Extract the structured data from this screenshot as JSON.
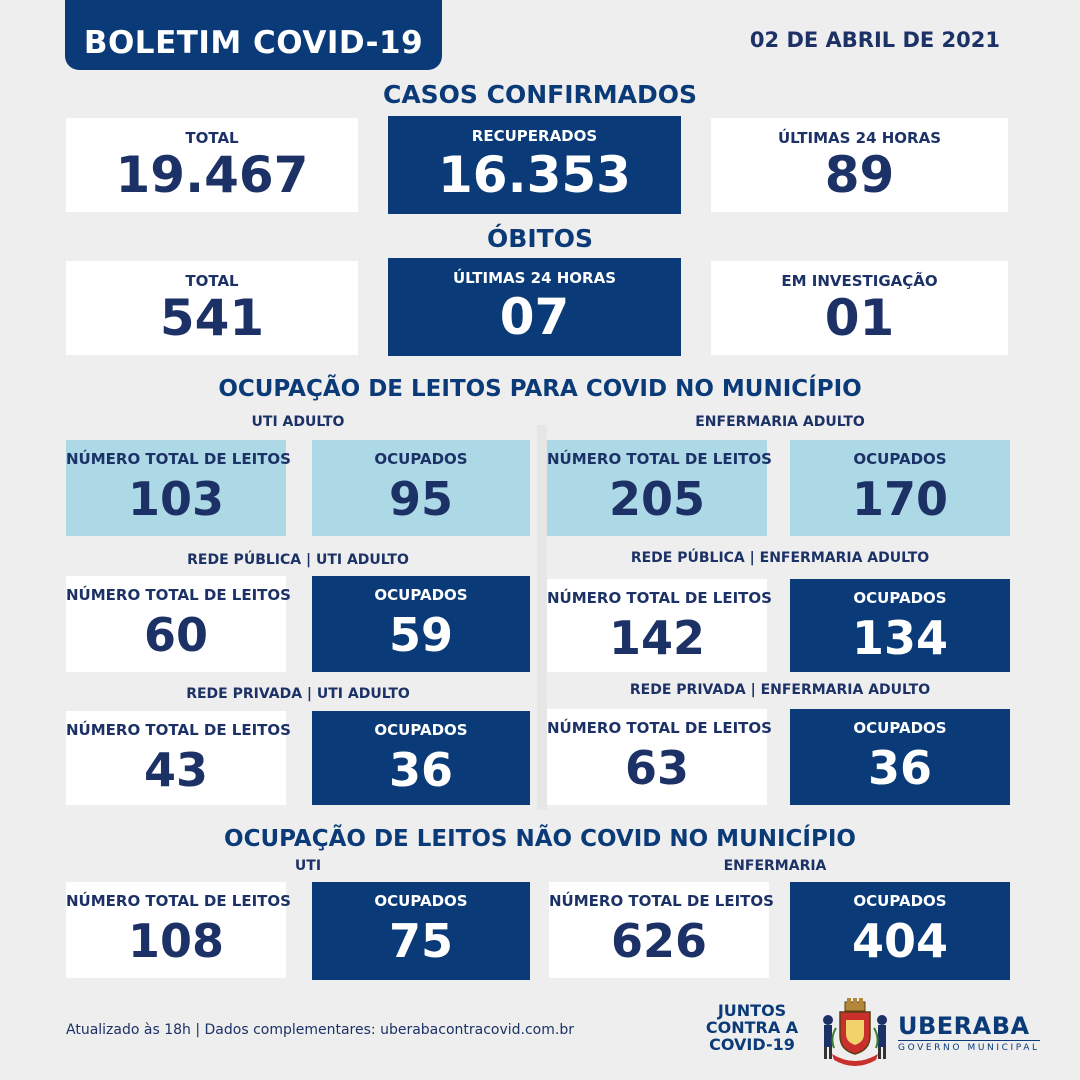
{
  "header": {
    "title": "BOLETIM COVID-19",
    "date": "02 DE ABRIL DE 2021"
  },
  "casos": {
    "heading": "CASOS CONFIRMADOS",
    "total": {
      "label": "TOTAL",
      "value": "19.467"
    },
    "recuperados": {
      "label": "RECUPERADOS",
      "value": "16.353"
    },
    "ultimas24": {
      "label": "ÚLTIMAS 24 HORAS",
      "value": "89"
    }
  },
  "obitos": {
    "heading": "ÓBITOS",
    "total": {
      "label": "TOTAL",
      "value": "541"
    },
    "ultimas24": {
      "label": "ÚLTIMAS 24 HORAS",
      "value": "07"
    },
    "investigacao": {
      "label": "EM INVESTIGAÇÃO",
      "value": "01"
    }
  },
  "covid": {
    "heading": "OCUPAÇÃO DE LEITOS PARA COVID NO MUNICÍPIO",
    "uti": {
      "label": "UTI ADULTO",
      "total_label": "NÚMERO TOTAL DE LEITOS",
      "total": "103",
      "ocup_label": "OCUPADOS",
      "ocupados": "95"
    },
    "enf": {
      "label": "ENFERMARIA ADULTO",
      "total_label": "NÚMERO TOTAL DE LEITOS",
      "total": "205",
      "ocup_label": "OCUPADOS",
      "ocupados": "170"
    },
    "pub_uti": {
      "label": "REDE PÚBLICA | UTI ADULTO",
      "total_label": "NÚMERO TOTAL DE LEITOS",
      "total": "60",
      "ocup_label": "OCUPADOS",
      "ocupados": "59"
    },
    "pub_enf": {
      "label": "REDE PÚBLICA | ENFERMARIA ADULTO",
      "total_label": "NÚMERO TOTAL DE LEITOS",
      "total": "142",
      "ocup_label": "OCUPADOS",
      "ocupados": "134"
    },
    "priv_uti": {
      "label": "REDE PRIVADA | UTI ADULTO",
      "total_label": "NÚMERO TOTAL DE LEITOS",
      "total": "43",
      "ocup_label": "OCUPADOS",
      "ocupados": "36"
    },
    "priv_enf": {
      "label": "REDE PRIVADA | ENFERMARIA ADULTO",
      "total_label": "NÚMERO TOTAL DE LEITOS",
      "total": "63",
      "ocup_label": "OCUPADOS",
      "ocupados": "36"
    }
  },
  "naocovid": {
    "heading": "OCUPAÇÃO DE LEITOS NÃO COVID NO MUNICÍPIO",
    "uti": {
      "label": "UTI",
      "total_label": "NÚMERO TOTAL DE LEITOS",
      "total": "108",
      "ocup_label": "OCUPADOS",
      "ocupados": "75"
    },
    "enf": {
      "label": "ENFERMARIA",
      "total_label": "NÚMERO TOTAL DE LEITOS",
      "total": "626",
      "ocup_label": "OCUPADOS",
      "ocupados": "404"
    }
  },
  "footer": {
    "text": "Atualizado às 18h | Dados complementares: uberabacontracovid.com.br",
    "campaign": [
      "JUNTOS",
      "CONTRA A",
      "COVID-19"
    ],
    "city": "UBERABA",
    "city_sub": "GOVERNO MUNICIPAL"
  },
  "colors": {
    "dark_blue": "#0a3b78",
    "light_blue": "#add8e6",
    "text_navy": "#1c3166",
    "background": "#eeeeee"
  },
  "icons": [
    "coat-of-arms-icon"
  ]
}
